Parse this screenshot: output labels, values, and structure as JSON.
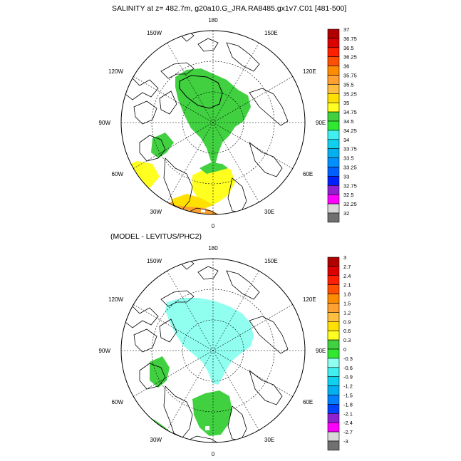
{
  "panels": [
    {
      "title": "SALINITY at z= 482.7m, g20a10.G_JRA.RA8485.gx1v7.C01 [481-500]",
      "lon_labels": [
        "180",
        "150E",
        "120E",
        "90E",
        "60E",
        "30E",
        "0",
        "30W",
        "60W",
        "90W",
        "120W",
        "150W"
      ],
      "colorbar": {
        "labels": [
          "37",
          "36.75",
          "36.5",
          "36.25",
          "36",
          "35.75",
          "35.5",
          "35.25",
          "35",
          "34.75",
          "34.5",
          "34.25",
          "34",
          "33.75",
          "33.5",
          "33.25",
          "33",
          "32.75",
          "32.5",
          "32.25",
          "32"
        ],
        "colors": [
          "#b00000",
          "#dd0000",
          "#ff2000",
          "#ff5000",
          "#ff8c00",
          "#ffa030",
          "#ffbe40",
          "#ffe000",
          "#ffff20",
          "#40d040",
          "#30e830",
          "#40f0f0",
          "#10d0f0",
          "#00b0f0",
          "#0090ff",
          "#0060ff",
          "#0020ff",
          "#9020d0",
          "#ff00ff",
          "#d8d8d8",
          "#707070"
        ]
      }
    },
    {
      "title": "(MODEL - LEVITUS/PHC2)",
      "lon_labels": [
        "180",
        "150E",
        "120E",
        "90E",
        "60E",
        "30E",
        "0",
        "30W",
        "60W",
        "90W",
        "120W",
        "150W"
      ],
      "colorbar": {
        "labels": [
          "3",
          "2.7",
          "2.4",
          "2.1",
          "1.8",
          "1.5",
          "1.2",
          "0.9",
          "0.6",
          "0.3",
          "0",
          "-0.3",
          "-0.6",
          "-0.9",
          "-1.2",
          "-1.5",
          "-1.8",
          "-2.1",
          "-2.4",
          "-2.7",
          "-3"
        ],
        "colors": [
          "#b00000",
          "#dd0000",
          "#ff2000",
          "#ff5000",
          "#ff8c00",
          "#ffa030",
          "#ffbe40",
          "#ffe000",
          "#ffff20",
          "#40d040",
          "#30e830",
          "#90fff0",
          "#40f0f0",
          "#10d0f0",
          "#00b0f0",
          "#0080ff",
          "#0040ff",
          "#9020d0",
          "#ff00ff",
          "#d8d8d8",
          "#707070"
        ]
      }
    }
  ]
}
